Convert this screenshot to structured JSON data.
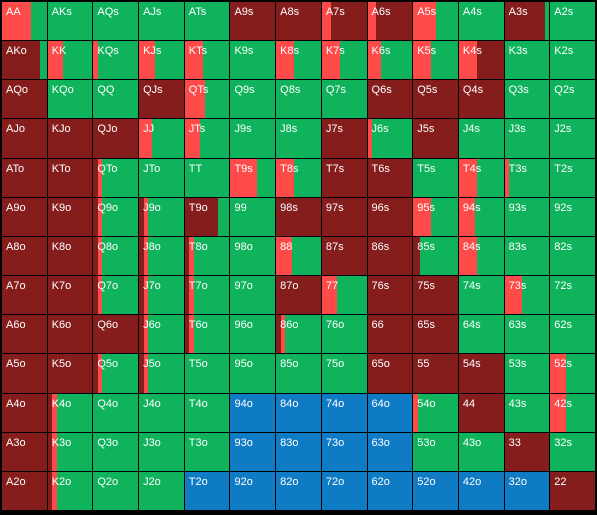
{
  "colors": {
    "raise": "#ff4a4a",
    "call": "#0fb35c",
    "fold": "#851d1d",
    "blue": "#0f7bc4"
  },
  "rows": [
    [
      "AA",
      "AKs",
      "AQs",
      "AJs",
      "ATs",
      "A9s",
      "A8s",
      "A7s",
      "A6s",
      "A5s",
      "A4s",
      "A3s",
      "A2s"
    ],
    [
      "AKo",
      "KK",
      "KQs",
      "KJs",
      "KTs",
      "K9s",
      "K8s",
      "K7s",
      "K6s",
      "K5s",
      "K4s",
      "K3s",
      "K2s"
    ],
    [
      "AQo",
      "KQo",
      "QQ",
      "QJs",
      "QTs",
      "Q9s",
      "Q8s",
      "Q7s",
      "Q6s",
      "Q5s",
      "Q4s",
      "Q3s",
      "Q2s"
    ],
    [
      "AJo",
      "KJo",
      "QJo",
      "JJ",
      "JTs",
      "J9s",
      "J8s",
      "J7s",
      "J6s",
      "J5s",
      "J4s",
      "J3s",
      "J2s"
    ],
    [
      "ATo",
      "KTo",
      "QTo",
      "JTo",
      "TT",
      "T9s",
      "T8s",
      "T7s",
      "T6s",
      "T5s",
      "T4s",
      "T3s",
      "T2s"
    ],
    [
      "A9o",
      "K9o",
      "Q9o",
      "J9o",
      "T9o",
      "99",
      "98s",
      "97s",
      "96s",
      "95s",
      "94s",
      "93s",
      "92s"
    ],
    [
      "A8o",
      "K8o",
      "Q8o",
      "J8o",
      "T8o",
      "98o",
      "88",
      "87s",
      "86s",
      "85s",
      "84s",
      "83s",
      "82s"
    ],
    [
      "A7o",
      "K7o",
      "Q7o",
      "J7o",
      "T7o",
      "97o",
      "87o",
      "77",
      "76s",
      "75s",
      "74s",
      "73s",
      "72s"
    ],
    [
      "A6o",
      "K6o",
      "Q6o",
      "J6o",
      "T6o",
      "96o",
      "86o",
      "76o",
      "66",
      "65s",
      "64s",
      "63s",
      "62s"
    ],
    [
      "A5o",
      "K5o",
      "Q5o",
      "J5o",
      "T5o",
      "95o",
      "85o",
      "75o",
      "65o",
      "55",
      "54s",
      "53s",
      "52s"
    ],
    [
      "A4o",
      "K4o",
      "Q4o",
      "J4o",
      "T4o",
      "94o",
      "84o",
      "74o",
      "64o",
      "54o",
      "44",
      "43s",
      "42s"
    ],
    [
      "A3o",
      "K3o",
      "Q3o",
      "J3o",
      "T3o",
      "93o",
      "83o",
      "73o",
      "63o",
      "53o",
      "43o",
      "33",
      "32s"
    ],
    [
      "A2o",
      "K2o",
      "Q2o",
      "J2o",
      "T2o",
      "92o",
      "82o",
      "72o",
      "62o",
      "52o",
      "42o",
      "32o",
      "22"
    ]
  ],
  "cell_mix": [
    [
      [
        [
          "raise",
          0.65
        ],
        [
          "call",
          0.35
        ]
      ],
      [
        [
          "call",
          1
        ]
      ],
      [
        [
          "call",
          1
        ]
      ],
      [
        [
          "call",
          1
        ]
      ],
      [
        [
          "call",
          1
        ]
      ],
      [
        [
          "fold",
          1
        ]
      ],
      [
        [
          "fold",
          1
        ]
      ],
      [
        [
          "raise",
          0.2
        ],
        [
          "fold",
          0.8
        ]
      ],
      [
        [
          "raise",
          0.2
        ],
        [
          "fold",
          0.8
        ]
      ],
      [
        [
          "raise",
          0.5
        ],
        [
          "call",
          0.5
        ]
      ],
      [
        [
          "call",
          1
        ]
      ],
      [
        [
          "fold",
          0.9
        ],
        [
          "call",
          0.1
        ]
      ],
      [
        [
          "call",
          1
        ]
      ]
    ],
    [
      [
        [
          "fold",
          0.85
        ],
        [
          "call",
          0.15
        ]
      ],
      [
        [
          "raise",
          0.35
        ],
        [
          "call",
          0.65
        ]
      ],
      [
        [
          "raise",
          0.1
        ],
        [
          "call",
          0.9
        ]
      ],
      [
        [
          "raise",
          0.35
        ],
        [
          "call",
          0.65
        ]
      ],
      [
        [
          "raise",
          0.4
        ],
        [
          "call",
          0.6
        ]
      ],
      [
        [
          "call",
          1
        ]
      ],
      [
        [
          "raise",
          0.4
        ],
        [
          "call",
          0.6
        ]
      ],
      [
        [
          "raise",
          0.4
        ],
        [
          "call",
          0.6
        ]
      ],
      [
        [
          "raise",
          0.3
        ],
        [
          "call",
          0.7
        ]
      ],
      [
        [
          "raise",
          0.4
        ],
        [
          "call",
          0.6
        ]
      ],
      [
        [
          "raise",
          0.4
        ],
        [
          "fold",
          0.6
        ]
      ],
      [
        [
          "call",
          1
        ]
      ],
      [
        [
          "call",
          1
        ]
      ]
    ],
    [
      [
        [
          "fold",
          1
        ]
      ],
      [
        [
          "call",
          1
        ]
      ],
      [
        [
          "call",
          1
        ]
      ],
      [
        [
          "fold",
          1
        ]
      ],
      [
        [
          "raise",
          0.45
        ],
        [
          "call",
          0.55
        ]
      ],
      [
        [
          "call",
          1
        ]
      ],
      [
        [
          "call",
          1
        ]
      ],
      [
        [
          "call",
          1
        ]
      ],
      [
        [
          "fold",
          1
        ]
      ],
      [
        [
          "fold",
          1
        ]
      ],
      [
        [
          "fold",
          1
        ]
      ],
      [
        [
          "call",
          1
        ]
      ],
      [
        [
          "call",
          1
        ]
      ]
    ],
    [
      [
        [
          "fold",
          1
        ]
      ],
      [
        [
          "fold",
          1
        ]
      ],
      [
        [
          "fold",
          1
        ]
      ],
      [
        [
          "raise",
          0.3
        ],
        [
          "call",
          0.7
        ]
      ],
      [
        [
          "raise",
          0.35
        ],
        [
          "call",
          0.65
        ]
      ],
      [
        [
          "call",
          1
        ]
      ],
      [
        [
          "call",
          1
        ]
      ],
      [
        [
          "fold",
          1
        ]
      ],
      [
        [
          "raise",
          0.1
        ],
        [
          "call",
          0.9
        ]
      ],
      [
        [
          "fold",
          1
        ]
      ],
      [
        [
          "call",
          1
        ]
      ],
      [
        [
          "call",
          1
        ]
      ],
      [
        [
          "call",
          1
        ]
      ]
    ],
    [
      [
        [
          "fold",
          1
        ]
      ],
      [
        [
          "fold",
          1
        ]
      ],
      [
        [
          "fold",
          0.1
        ],
        [
          "raise",
          0.1
        ],
        [
          "call",
          0.8
        ]
      ],
      [
        [
          "call",
          1
        ]
      ],
      [
        [
          "call",
          1
        ]
      ],
      [
        [
          "raise",
          0.6
        ],
        [
          "call",
          0.4
        ]
      ],
      [
        [
          "raise",
          0.4
        ],
        [
          "call",
          0.6
        ]
      ],
      [
        [
          "fold",
          1
        ]
      ],
      [
        [
          "fold",
          1
        ]
      ],
      [
        [
          "call",
          1
        ]
      ],
      [
        [
          "raise",
          0.4
        ],
        [
          "call",
          0.6
        ]
      ],
      [
        [
          "raise",
          0.1
        ],
        [
          "call",
          0.9
        ]
      ],
      [
        [
          "call",
          1
        ]
      ]
    ],
    [
      [
        [
          "fold",
          1
        ]
      ],
      [
        [
          "fold",
          1
        ]
      ],
      [
        [
          "fold",
          0.1
        ],
        [
          "raise",
          0.1
        ],
        [
          "call",
          0.8
        ]
      ],
      [
        [
          "fold",
          0.1
        ],
        [
          "raise",
          0.1
        ],
        [
          "call",
          0.8
        ]
      ],
      [
        [
          "fold",
          0.75
        ],
        [
          "call",
          0.25
        ]
      ],
      [
        [
          "call",
          1
        ]
      ],
      [
        [
          "fold",
          1
        ]
      ],
      [
        [
          "fold",
          1
        ]
      ],
      [
        [
          "fold",
          1
        ]
      ],
      [
        [
          "raise",
          0.4
        ],
        [
          "call",
          0.6
        ]
      ],
      [
        [
          "raise",
          0.35
        ],
        [
          "call",
          0.65
        ]
      ],
      [
        [
          "call",
          1
        ]
      ],
      [
        [
          "call",
          1
        ]
      ]
    ],
    [
      [
        [
          "fold",
          1
        ]
      ],
      [
        [
          "fold",
          1
        ]
      ],
      [
        [
          "fold",
          0.1
        ],
        [
          "raise",
          0.1
        ],
        [
          "call",
          0.8
        ]
      ],
      [
        [
          "fold",
          0.1
        ],
        [
          "raise",
          0.1
        ],
        [
          "call",
          0.8
        ]
      ],
      [
        [
          "fold",
          0.1
        ],
        [
          "raise",
          0.1
        ],
        [
          "call",
          0.8
        ]
      ],
      [
        [
          "call",
          1
        ]
      ],
      [
        [
          "raise",
          0.35
        ],
        [
          "call",
          0.65
        ]
      ],
      [
        [
          "fold",
          1
        ]
      ],
      [
        [
          "fold",
          1
        ]
      ],
      [
        [
          "fold",
          0.15
        ],
        [
          "call",
          0.85
        ]
      ],
      [
        [
          "raise",
          0.4
        ],
        [
          "call",
          0.6
        ]
      ],
      [
        [
          "call",
          1
        ]
      ],
      [
        [
          "call",
          1
        ]
      ]
    ],
    [
      [
        [
          "fold",
          1
        ]
      ],
      [
        [
          "fold",
          1
        ]
      ],
      [
        [
          "fold",
          0.1
        ],
        [
          "raise",
          0.1
        ],
        [
          "call",
          0.8
        ]
      ],
      [
        [
          "fold",
          0.1
        ],
        [
          "raise",
          0.1
        ],
        [
          "call",
          0.8
        ]
      ],
      [
        [
          "fold",
          0.1
        ],
        [
          "raise",
          0.1
        ],
        [
          "call",
          0.8
        ]
      ],
      [
        [
          "call",
          1
        ]
      ],
      [
        [
          "fold",
          1
        ]
      ],
      [
        [
          "raise",
          0.35
        ],
        [
          "call",
          0.65
        ]
      ],
      [
        [
          "fold",
          1
        ]
      ],
      [
        [
          "fold",
          1
        ]
      ],
      [
        [
          "call",
          1
        ]
      ],
      [
        [
          "raise",
          0.4
        ],
        [
          "call",
          0.6
        ]
      ],
      [
        [
          "call",
          1
        ]
      ]
    ],
    [
      [
        [
          "fold",
          1
        ]
      ],
      [
        [
          "fold",
          1
        ]
      ],
      [
        [
          "fold",
          1
        ]
      ],
      [
        [
          "fold",
          0.1
        ],
        [
          "raise",
          0.1
        ],
        [
          "call",
          0.8
        ]
      ],
      [
        [
          "fold",
          0.1
        ],
        [
          "raise",
          0.1
        ],
        [
          "call",
          0.8
        ]
      ],
      [
        [
          "call",
          1
        ]
      ],
      [
        [
          "fold",
          0.1
        ],
        [
          "raise",
          0.1
        ],
        [
          "call",
          0.8
        ]
      ],
      [
        [
          "call",
          1
        ]
      ],
      [
        [
          "fold",
          1
        ]
      ],
      [
        [
          "fold",
          1
        ]
      ],
      [
        [
          "call",
          1
        ]
      ],
      [
        [
          "call",
          1
        ]
      ],
      [
        [
          "call",
          1
        ]
      ]
    ],
    [
      [
        [
          "fold",
          1
        ]
      ],
      [
        [
          "fold",
          1
        ]
      ],
      [
        [
          "fold",
          0.1
        ],
        [
          "raise",
          0.1
        ],
        [
          "call",
          0.8
        ]
      ],
      [
        [
          "fold",
          0.1
        ],
        [
          "raise",
          0.1
        ],
        [
          "call",
          0.8
        ]
      ],
      [
        [
          "call",
          1
        ]
      ],
      [
        [
          "call",
          1
        ]
      ],
      [
        [
          "call",
          1
        ]
      ],
      [
        [
          "call",
          1
        ]
      ],
      [
        [
          "fold",
          1
        ]
      ],
      [
        [
          "fold",
          1
        ]
      ],
      [
        [
          "fold",
          1
        ]
      ],
      [
        [
          "call",
          1
        ]
      ],
      [
        [
          "raise",
          0.35
        ],
        [
          "call",
          0.65
        ]
      ]
    ],
    [
      [
        [
          "fold",
          1
        ]
      ],
      [
        [
          "fold",
          0.1
        ],
        [
          "raise",
          0.1
        ],
        [
          "call",
          0.8
        ]
      ],
      [
        [
          "call",
          1
        ]
      ],
      [
        [
          "call",
          1
        ]
      ],
      [
        [
          "call",
          1
        ]
      ],
      [
        [
          "blue",
          1
        ]
      ],
      [
        [
          "blue",
          1
        ]
      ],
      [
        [
          "blue",
          1
        ]
      ],
      [
        [
          "blue",
          1
        ]
      ],
      [
        [
          "raise",
          0.1
        ],
        [
          "call",
          0.9
        ]
      ],
      [
        [
          "fold",
          1
        ]
      ],
      [
        [
          "call",
          1
        ]
      ],
      [
        [
          "raise",
          0.35
        ],
        [
          "call",
          0.65
        ]
      ]
    ],
    [
      [
        [
          "fold",
          1
        ]
      ],
      [
        [
          "fold",
          0.1
        ],
        [
          "raise",
          0.1
        ],
        [
          "call",
          0.8
        ]
      ],
      [
        [
          "call",
          1
        ]
      ],
      [
        [
          "call",
          1
        ]
      ],
      [
        [
          "call",
          1
        ]
      ],
      [
        [
          "blue",
          1
        ]
      ],
      [
        [
          "blue",
          1
        ]
      ],
      [
        [
          "blue",
          1
        ]
      ],
      [
        [
          "blue",
          1
        ]
      ],
      [
        [
          "call",
          1
        ]
      ],
      [
        [
          "call",
          1
        ]
      ],
      [
        [
          "fold",
          1
        ]
      ],
      [
        [
          "call",
          1
        ]
      ]
    ],
    [
      [
        [
          "fold",
          1
        ]
      ],
      [
        [
          "fold",
          0.1
        ],
        [
          "raise",
          0.1
        ],
        [
          "call",
          0.8
        ]
      ],
      [
        [
          "call",
          1
        ]
      ],
      [
        [
          "call",
          1
        ]
      ],
      [
        [
          "blue",
          1
        ]
      ],
      [
        [
          "blue",
          1
        ]
      ],
      [
        [
          "blue",
          1
        ]
      ],
      [
        [
          "blue",
          1
        ]
      ],
      [
        [
          "blue",
          1
        ]
      ],
      [
        [
          "blue",
          1
        ]
      ],
      [
        [
          "blue",
          1
        ]
      ],
      [
        [
          "blue",
          1
        ]
      ],
      [
        [
          "fold",
          1
        ]
      ]
    ]
  ]
}
